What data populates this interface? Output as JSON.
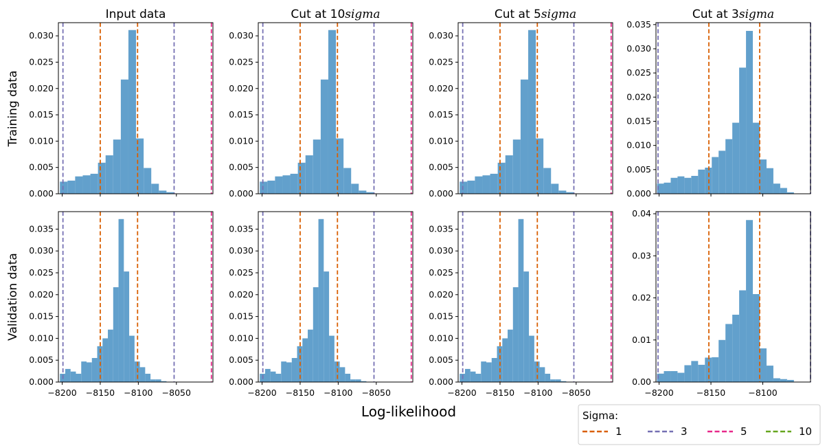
{
  "figure": {
    "xlabel": "Log-likelihood",
    "row_labels": [
      "Training data",
      "Validation data"
    ],
    "column_titles": [
      "Input data",
      "Cut at 10",
      "Cut at 5",
      "Cut at 3"
    ],
    "title_sigma": "sigma"
  },
  "legend": {
    "title": "Sigma:",
    "entries": [
      {
        "label": "1",
        "color": "#d95f02"
      },
      {
        "label": "3",
        "color": "#7570b3"
      },
      {
        "label": "5",
        "color": "#e7298a"
      },
      {
        "label": "10",
        "color": "#66a61e"
      }
    ]
  },
  "colors": {
    "bar": "#62a0cc"
  },
  "chart_data": [
    {
      "type": "bar",
      "title": "Input data",
      "row": "Training data",
      "bin_edges": [
        -8203,
        -8193,
        -8183,
        -8173,
        -8163,
        -8153,
        -8143,
        -8133,
        -8123,
        -8113,
        -8103,
        -8093,
        -8083,
        -8073,
        -8063,
        -8053
      ],
      "values": [
        0.0023,
        0.0025,
        0.0033,
        0.0035,
        0.0038,
        0.0059,
        0.0073,
        0.0103,
        0.0217,
        0.0311,
        0.0105,
        0.0049,
        0.0019,
        0.0006,
        0.0003
      ],
      "ylim": [
        0,
        0.0325
      ],
      "xlim": [
        -8205,
        -8002
      ],
      "yticks": [
        0.0,
        0.005,
        0.01,
        0.015,
        0.02,
        0.025,
        0.03
      ],
      "ytick_decimals": 3,
      "xticks": [
        -8200,
        -8150,
        -8100,
        -8050
      ],
      "vlines": [
        {
          "sigma": 1,
          "x": [
            -8150,
            -8101
          ]
        },
        {
          "sigma": 3,
          "x": [
            -8199,
            -8053
          ]
        },
        {
          "sigma": 5,
          "x": [
            -8004
          ]
        }
      ]
    },
    {
      "type": "bar",
      "title": "Cut at 10sigma",
      "row": "Training data",
      "bin_edges": [
        -8203,
        -8193,
        -8183,
        -8173,
        -8163,
        -8153,
        -8143,
        -8133,
        -8123,
        -8113,
        -8103,
        -8093,
        -8083,
        -8073,
        -8063,
        -8053
      ],
      "values": [
        0.0023,
        0.0025,
        0.0033,
        0.0035,
        0.0038,
        0.0059,
        0.0073,
        0.0103,
        0.0217,
        0.0311,
        0.0105,
        0.0049,
        0.0019,
        0.0006,
        0.0003
      ],
      "ylim": [
        0,
        0.0325
      ],
      "xlim": [
        -8205,
        -8002
      ],
      "yticks": [
        0.0,
        0.005,
        0.01,
        0.015,
        0.02,
        0.025,
        0.03
      ],
      "ytick_decimals": 3,
      "xticks": [
        -8200,
        -8150,
        -8100,
        -8050
      ],
      "vlines": [
        {
          "sigma": 1,
          "x": [
            -8150,
            -8101
          ]
        },
        {
          "sigma": 3,
          "x": [
            -8199,
            -8053
          ]
        },
        {
          "sigma": 5,
          "x": [
            -8004
          ]
        }
      ]
    },
    {
      "type": "bar",
      "title": "Cut at 5sigma",
      "row": "Training data",
      "bin_edges": [
        -8203,
        -8193,
        -8183,
        -8173,
        -8163,
        -8153,
        -8143,
        -8133,
        -8123,
        -8113,
        -8103,
        -8093,
        -8083,
        -8073,
        -8063,
        -8053
      ],
      "values": [
        0.0023,
        0.0025,
        0.0033,
        0.0035,
        0.0038,
        0.0059,
        0.0073,
        0.0103,
        0.0217,
        0.0311,
        0.0105,
        0.0049,
        0.0019,
        0.0006,
        0.0003
      ],
      "ylim": [
        0,
        0.0325
      ],
      "xlim": [
        -8205,
        -8002
      ],
      "yticks": [
        0.0,
        0.005,
        0.01,
        0.015,
        0.02,
        0.025,
        0.03
      ],
      "ytick_decimals": 3,
      "xticks": [
        -8200,
        -8150,
        -8100,
        -8050
      ],
      "vlines": [
        {
          "sigma": 1,
          "x": [
            -8150,
            -8101
          ]
        },
        {
          "sigma": 3,
          "x": [
            -8199,
            -8053
          ]
        },
        {
          "sigma": 5,
          "x": [
            -8004
          ]
        }
      ]
    },
    {
      "type": "bar",
      "title": "Cut at 3sigma",
      "row": "Training data",
      "bin_edges": [
        -8202,
        -8195.4,
        -8188.8,
        -8182.2,
        -8175.6,
        -8169,
        -8162.4,
        -8155.8,
        -8149.2,
        -8142.6,
        -8136,
        -8129.4,
        -8122.8,
        -8116.2,
        -8109.6,
        -8103,
        -8096.4,
        -8089.8,
        -8083.2,
        -8076.6,
        -8070
      ],
      "values": [
        0.0021,
        0.0023,
        0.0033,
        0.0036,
        0.0033,
        0.0037,
        0.005,
        0.0054,
        0.0076,
        0.0089,
        0.0113,
        0.0147,
        0.0261,
        0.0337,
        0.0147,
        0.0071,
        0.0053,
        0.0021,
        0.0012,
        0.0003
      ],
      "ylim": [
        0,
        0.0354
      ],
      "xlim": [
        -8203,
        -8054
      ],
      "yticks": [
        0.0,
        0.005,
        0.01,
        0.015,
        0.02,
        0.025,
        0.03,
        0.035
      ],
      "ytick_decimals": 3,
      "xticks": [
        -8200,
        -8150,
        -8100
      ],
      "vlines": [
        {
          "sigma": 1,
          "x": [
            -8152,
            -8103
          ]
        },
        {
          "sigma": 3,
          "x": [
            -8201,
            -8054
          ]
        }
      ]
    },
    {
      "type": "bar",
      "title": "Input data",
      "row": "Validation data",
      "bin_edges": [
        -8203,
        -8196,
        -8189,
        -8182,
        -8175,
        -8168,
        -8161,
        -8154,
        -8147,
        -8140,
        -8133,
        -8126,
        -8119,
        -8112,
        -8105,
        -8098,
        -8091,
        -8084,
        -8077,
        -8070,
        -8063
      ],
      "values": [
        0.0019,
        0.003,
        0.0024,
        0.0019,
        0.0047,
        0.0045,
        0.0055,
        0.0082,
        0.01,
        0.012,
        0.0217,
        0.0373,
        0.0253,
        0.0106,
        0.0047,
        0.0034,
        0.0019,
        0.0006,
        0.0006,
        0.0002
      ],
      "ylim": [
        0,
        0.039
      ],
      "xlim": [
        -8205,
        -8002
      ],
      "yticks": [
        0.0,
        0.005,
        0.01,
        0.015,
        0.02,
        0.025,
        0.03,
        0.035
      ],
      "ytick_decimals": 3,
      "xticks": [
        -8200,
        -8150,
        -8100,
        -8050
      ],
      "vlines": [
        {
          "sigma": 1,
          "x": [
            -8150,
            -8101
          ]
        },
        {
          "sigma": 3,
          "x": [
            -8199,
            -8053
          ]
        },
        {
          "sigma": 5,
          "x": [
            -8004
          ]
        }
      ]
    },
    {
      "type": "bar",
      "title": "Cut at 10sigma",
      "row": "Validation data",
      "bin_edges": [
        -8203,
        -8196,
        -8189,
        -8182,
        -8175,
        -8168,
        -8161,
        -8154,
        -8147,
        -8140,
        -8133,
        -8126,
        -8119,
        -8112,
        -8105,
        -8098,
        -8091,
        -8084,
        -8077,
        -8070,
        -8063
      ],
      "values": [
        0.0019,
        0.003,
        0.0024,
        0.0019,
        0.0047,
        0.0045,
        0.0055,
        0.0082,
        0.01,
        0.012,
        0.0217,
        0.0373,
        0.0253,
        0.0106,
        0.0047,
        0.0034,
        0.0019,
        0.0006,
        0.0006,
        0.0002
      ],
      "ylim": [
        0,
        0.039
      ],
      "xlim": [
        -8205,
        -8002
      ],
      "yticks": [
        0.0,
        0.005,
        0.01,
        0.015,
        0.02,
        0.025,
        0.03,
        0.035
      ],
      "ytick_decimals": 3,
      "xticks": [
        -8200,
        -8150,
        -8100,
        -8050
      ],
      "vlines": [
        {
          "sigma": 1,
          "x": [
            -8150,
            -8101
          ]
        },
        {
          "sigma": 3,
          "x": [
            -8199,
            -8053
          ]
        },
        {
          "sigma": 5,
          "x": [
            -8004
          ]
        }
      ]
    },
    {
      "type": "bar",
      "title": "Cut at 5sigma",
      "row": "Validation data",
      "bin_edges": [
        -8203,
        -8196,
        -8189,
        -8182,
        -8175,
        -8168,
        -8161,
        -8154,
        -8147,
        -8140,
        -8133,
        -8126,
        -8119,
        -8112,
        -8105,
        -8098,
        -8091,
        -8084,
        -8077,
        -8070,
        -8063
      ],
      "values": [
        0.0019,
        0.003,
        0.0024,
        0.0019,
        0.0047,
        0.0045,
        0.0055,
        0.0082,
        0.01,
        0.012,
        0.0217,
        0.0373,
        0.0253,
        0.0106,
        0.0047,
        0.0034,
        0.0019,
        0.0006,
        0.0006,
        0.0002
      ],
      "ylim": [
        0,
        0.039
      ],
      "xlim": [
        -8205,
        -8002
      ],
      "yticks": [
        0.0,
        0.005,
        0.01,
        0.015,
        0.02,
        0.025,
        0.03,
        0.035
      ],
      "ytick_decimals": 3,
      "xticks": [
        -8200,
        -8150,
        -8100,
        -8050
      ],
      "vlines": [
        {
          "sigma": 1,
          "x": [
            -8150,
            -8101
          ]
        },
        {
          "sigma": 3,
          "x": [
            -8199,
            -8053
          ]
        },
        {
          "sigma": 5,
          "x": [
            -8004
          ]
        }
      ]
    },
    {
      "type": "bar",
      "title": "Cut at 3sigma",
      "row": "Validation data",
      "bin_edges": [
        -8202,
        -8195.4,
        -8188.8,
        -8182.2,
        -8175.6,
        -8169,
        -8162.4,
        -8155.8,
        -8149.2,
        -8142.6,
        -8136,
        -8129.4,
        -8122.8,
        -8116.2,
        -8109.6,
        -8103,
        -8096.4,
        -8089.8,
        -8083.2,
        -8076.6,
        -8070
      ],
      "values": [
        0.002,
        0.0026,
        0.0026,
        0.0022,
        0.004,
        0.005,
        0.0041,
        0.0058,
        0.0059,
        0.01,
        0.0138,
        0.016,
        0.0218,
        0.0385,
        0.0209,
        0.008,
        0.0039,
        0.0009,
        0.0007,
        0.0005
      ],
      "ylim": [
        0,
        0.0405
      ],
      "xlim": [
        -8203,
        -8054
      ],
      "yticks": [
        0.0,
        0.01,
        0.02,
        0.03,
        0.04
      ],
      "ytick_decimals": 2,
      "xticks": [
        -8200,
        -8150,
        -8100
      ],
      "vlines": [
        {
          "sigma": 1,
          "x": [
            -8152,
            -8103
          ]
        },
        {
          "sigma": 3,
          "x": [
            -8201,
            -8054
          ]
        }
      ]
    }
  ]
}
